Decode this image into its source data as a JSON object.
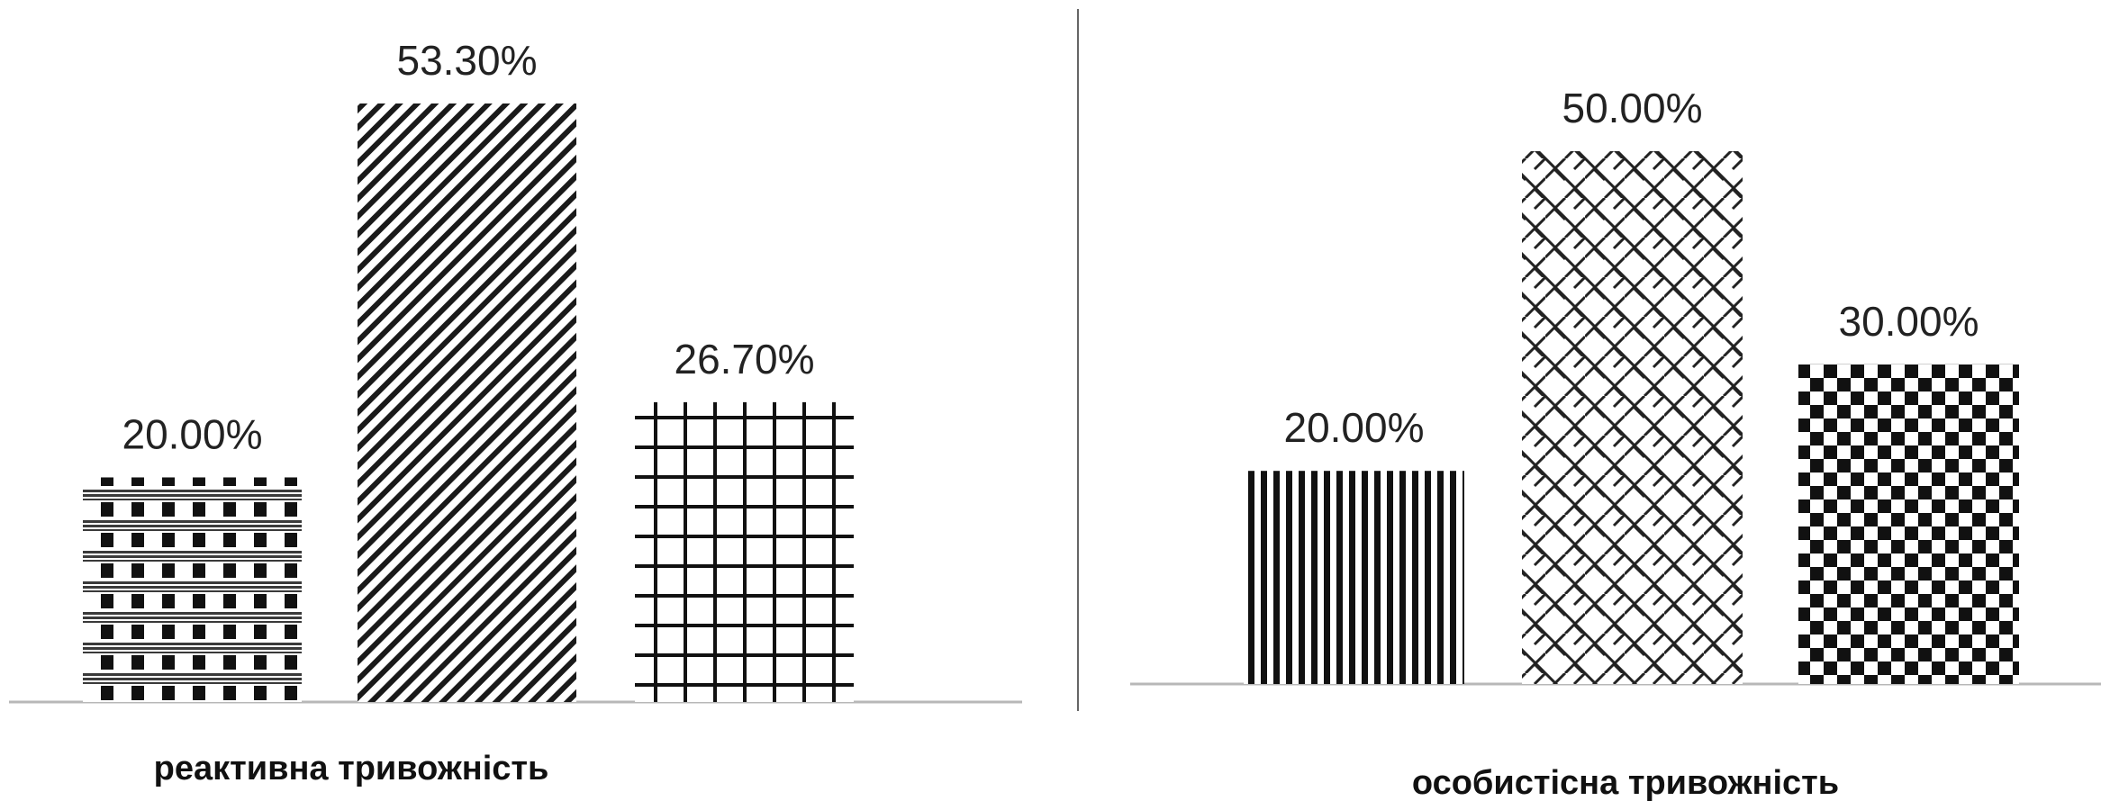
{
  "chart_data": [
    {
      "type": "bar",
      "title": "",
      "xlabel": "реактивна тривожність",
      "ylabel": "",
      "categories": [
        "",
        "",
        ""
      ],
      "values": [
        20.0,
        53.3,
        26.7
      ],
      "value_labels": [
        "20.00%",
        "53.30%",
        "26.70%"
      ],
      "patterns": [
        "dotted-grid",
        "diagonal-hatch",
        "square-grid"
      ],
      "ylim": [
        0,
        53.3
      ],
      "grid": false
    },
    {
      "type": "bar",
      "title": "",
      "xlabel": "особистісна тривожність",
      "ylabel": "",
      "categories": [
        "",
        "",
        ""
      ],
      "values": [
        20.0,
        50.0,
        30.0
      ],
      "value_labels": [
        "20.00%",
        "50.00%",
        "30.00%"
      ],
      "patterns": [
        "vertical-lines",
        "weave",
        "checkerboard"
      ],
      "ylim": [
        0,
        50
      ],
      "grid": false
    }
  ]
}
